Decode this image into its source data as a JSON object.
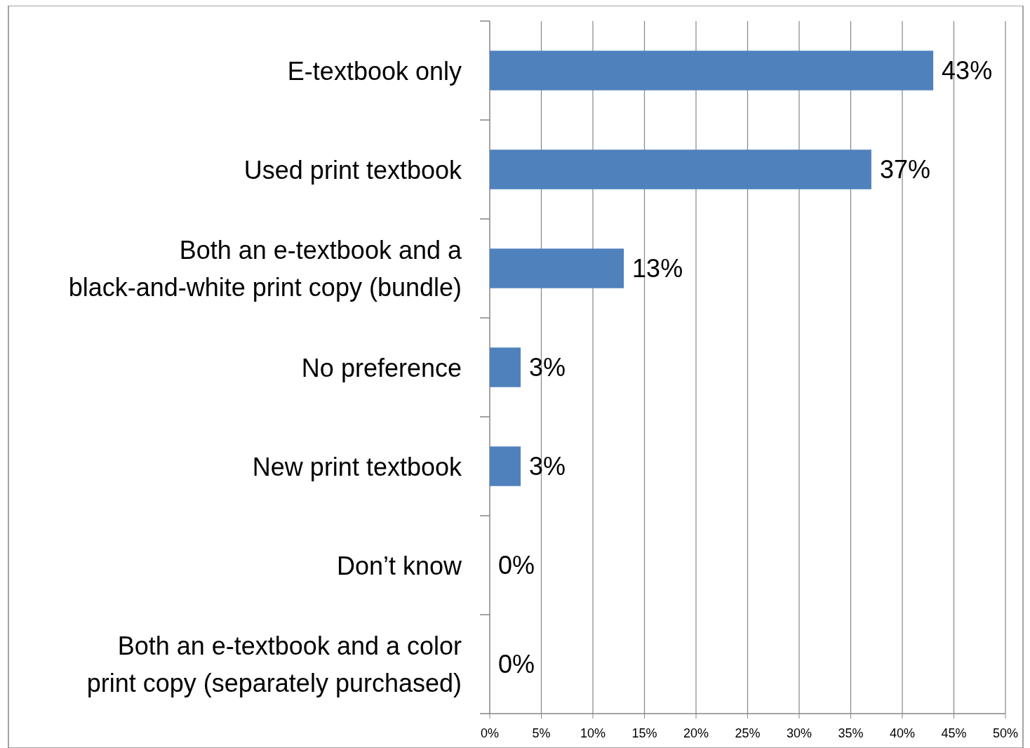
{
  "chart_data": {
    "type": "bar",
    "orientation": "horizontal",
    "categories": [
      "E-textbook only",
      "Used print textbook",
      "Both an e-textbook and a black-and-white print copy (bundle)",
      "No preference",
      "New print textbook",
      "Don’t know",
      "Both an e-textbook and a color print copy (separately purchased)"
    ],
    "values": [
      43,
      37,
      13,
      3,
      3,
      0,
      0
    ],
    "value_labels": [
      "43%",
      "37%",
      "13%",
      "3%",
      "3%",
      "0%",
      "0%"
    ],
    "color": "#4f81bd",
    "xlim": [
      0,
      50
    ],
    "xticks": [
      {
        "value": 0,
        "label": "0%"
      },
      {
        "value": 5,
        "label": "5%"
      },
      {
        "value": 10,
        "label": "10%"
      },
      {
        "value": 15,
        "label": "15%"
      },
      {
        "value": 20,
        "label": "20%"
      },
      {
        "value": 25,
        "label": "25%"
      },
      {
        "value": 30,
        "label": "30%"
      },
      {
        "value": 35,
        "label": "35%"
      },
      {
        "value": 40,
        "label": "40%"
      },
      {
        "value": 45,
        "label": "45%"
      },
      {
        "value": 50,
        "label": "50%"
      }
    ],
    "grid": "x"
  }
}
